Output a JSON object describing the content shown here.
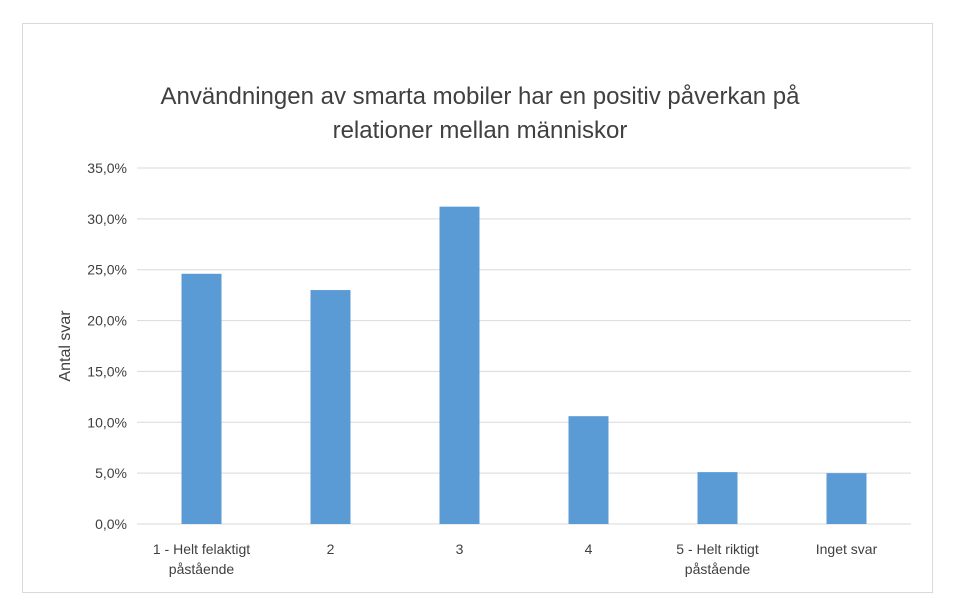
{
  "chart_data": {
    "type": "bar",
    "title_lines": [
      "Användningen av smarta mobiler har en positiv påverkan på",
      "relationer mellan människor"
    ],
    "ylabel": "Antal svar",
    "xlabel": "",
    "categories": [
      [
        "1 - Helt felaktigt",
        "påstående"
      ],
      [
        "2"
      ],
      [
        "3"
      ],
      [
        "4"
      ],
      [
        "5 - Helt riktigt",
        "påstående"
      ],
      [
        "Inget svar"
      ]
    ],
    "values": [
      24.6,
      23.0,
      31.2,
      10.6,
      5.1,
      5.0
    ],
    "ylim": [
      0,
      35
    ],
    "yticks": [
      "0,0%",
      "5,0%",
      "10,0%",
      "15,0%",
      "20,0%",
      "25,0%",
      "30,0%",
      "35,0%"
    ],
    "ytick_values": [
      0,
      5,
      10,
      15,
      20,
      25,
      30,
      35
    ],
    "grid": true,
    "bar_color": "#5b9bd5",
    "grid_color": "#d9d9d9"
  }
}
